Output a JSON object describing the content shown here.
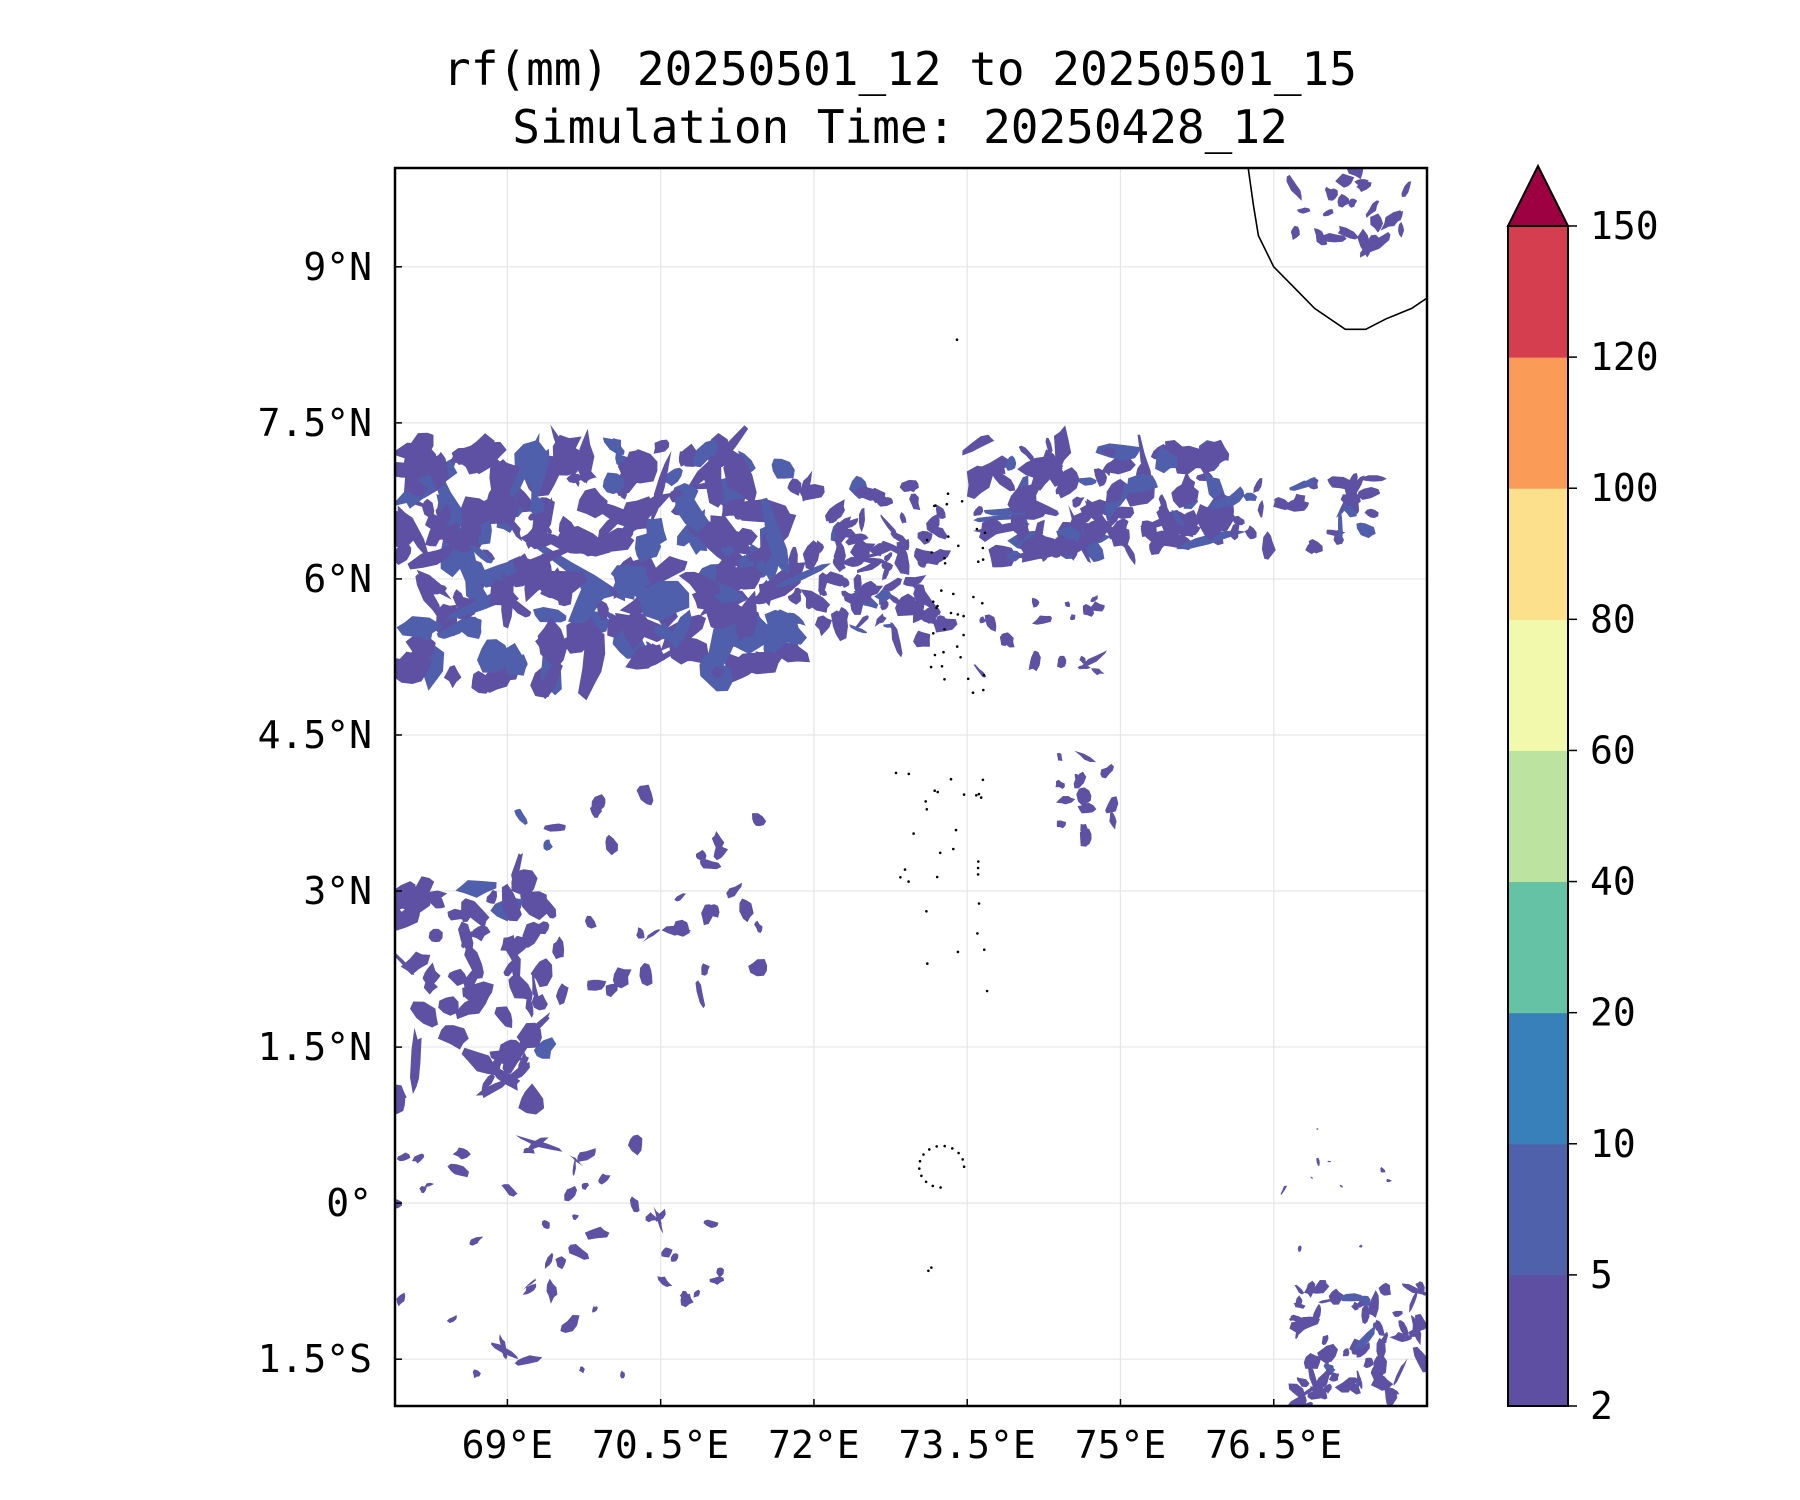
{
  "title": {
    "line1": "rf(mm) 20250501_12 to 20250501_15",
    "line2": "Simulation Time: 20250428_12"
  },
  "map": {
    "lon_range": [
      67.9,
      78.0
    ],
    "lat_range": [
      -1.95,
      9.95
    ],
    "lon_ticks": [
      69,
      70.5,
      72,
      73.5,
      75,
      76.5
    ],
    "lon_tick_labels": [
      "69°E",
      "70.5°E",
      "72°E",
      "73.5°E",
      "75°E",
      "76.5°E"
    ],
    "lat_ticks": [
      9,
      7.5,
      6,
      4.5,
      3,
      1.5,
      0,
      -1.5
    ],
    "lat_tick_labels": [
      "9°N",
      "7.5°N",
      "6°N",
      "4.5°N",
      "3°N",
      "1.5°N",
      "0°",
      "1.5°S"
    ],
    "gridlines": true,
    "rain_color": "#5e51a3",
    "rain_color_dark": "#4f5fab"
  },
  "colorbar": {
    "levels": [
      "2",
      "5",
      "10",
      "20",
      "40",
      "60",
      "80",
      "100",
      "120",
      "150"
    ],
    "colors": [
      "#5e4fa2",
      "#4f61ab",
      "#3780b9",
      "#66c2a5",
      "#bde3a0",
      "#f3f9ac",
      "#fde08b",
      "#fa9c58",
      "#d53e4f"
    ],
    "extend_color": "#9e0142",
    "extend": "max"
  }
}
